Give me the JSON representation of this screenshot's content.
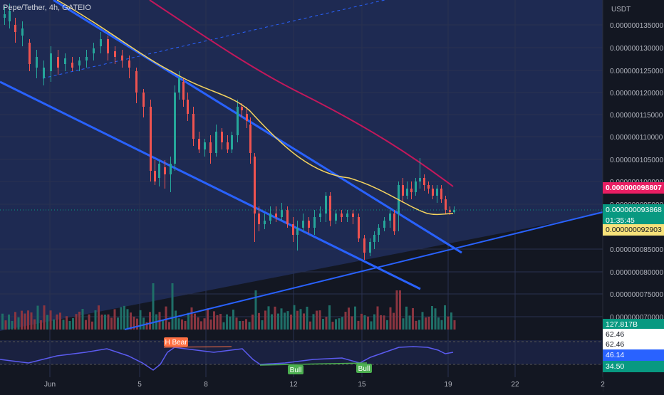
{
  "symbol_title": "Pepe/Tether, 4h, GATEIO",
  "currency": "USDT",
  "price_axis": {
    "labels": [
      "0.000000135000",
      "0.000000130000",
      "0.000000125000",
      "0.000000120000",
      "0.000000115000",
      "0.000000110000",
      "0.000000105000",
      "0.000000100000",
      "0.000000095000",
      "0.000000085000",
      "0.000000080000",
      "0.000000075000",
      "0.000000070000"
    ]
  },
  "time_axis": {
    "labels": [
      "Jun",
      "5",
      "8",
      "12",
      "15",
      "19",
      "22",
      "2"
    ]
  },
  "badges": {
    "ma_long_value": "0.000000098807",
    "last_price": "0.000000093868",
    "countdown": "01:35:45",
    "ma_short_value": "0.000000092903",
    "volume": "127.817B",
    "rsi_upper_a": "62.46",
    "rsi_upper_b": "62.46",
    "rsi_value": "46.14",
    "rsi_lower": "34.50"
  },
  "rsi_labels": {
    "h_bear": "H Bear",
    "bull_1": "Bull",
    "bull_2": "Bull"
  },
  "colors": {
    "background": "#131722",
    "panel": "#1e2a52",
    "up": "#26a69a",
    "down": "#ef5350",
    "trendline": "#2962ff",
    "ma_short": "#f4d35e",
    "ma_long": "#c2185b",
    "rsi": "#5b5bf0"
  },
  "chart_data": {
    "type": "candlestick",
    "x_range": [
      "Jun 1",
      "Jul 2"
    ],
    "y_range": [
      7e-08,
      1.38e-07
    ],
    "candles_close_approx": [
      1.37e-07,
      1.3e-07,
      1.27e-07,
      1.23e-07,
      1.28e-07,
      1.31e-07,
      1.27e-07,
      1.22e-07,
      1.04e-07,
      1.21e-07,
      1.08e-07,
      1.14e-07,
      1.17e-07,
      1.13e-07,
      9.1e-08,
      9.2e-08,
      8.9e-08,
      9.4e-08,
      9.2e-08,
      8.8e-08,
      9.2e-08,
      9.7e-08,
      1e-07,
      9.9e-08,
      9.4e-08
    ],
    "rsi_levels": [
      62.46,
      46.14,
      34.5
    ]
  }
}
